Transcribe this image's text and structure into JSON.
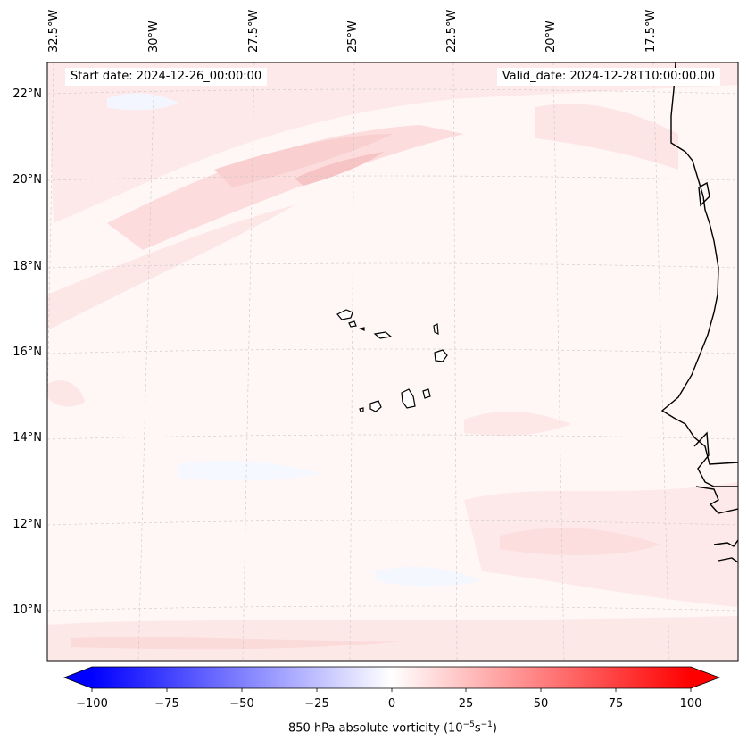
{
  "map": {
    "start_date": "Start date: 2024-12-26_00:00:00",
    "valid_date": "Valid_date: 2024-12-28T10:00:00.00",
    "lat_labels": [
      "22°N",
      "20°N",
      "18°N",
      "16°N",
      "14°N",
      "12°N",
      "10°N"
    ],
    "lon_labels": [
      "32.5°W",
      "30°W",
      "27.5°W",
      "25°W",
      "22.5°W",
      "20°W",
      "17.5°W"
    ],
    "colorbar": {
      "ticks": [
        "−100",
        "−75",
        "−50",
        "−25",
        "0",
        "25",
        "50",
        "75",
        "100"
      ],
      "label": "850 hPa absolute vorticity (10",
      "label_sup1": "−5",
      "label_mid": "s",
      "label_sup2": "−1",
      "label_end": ")",
      "cmap": "bwr",
      "min_color": "#0000ff",
      "mid_color": "#ffffff",
      "max_color": "#ff0000"
    }
  }
}
